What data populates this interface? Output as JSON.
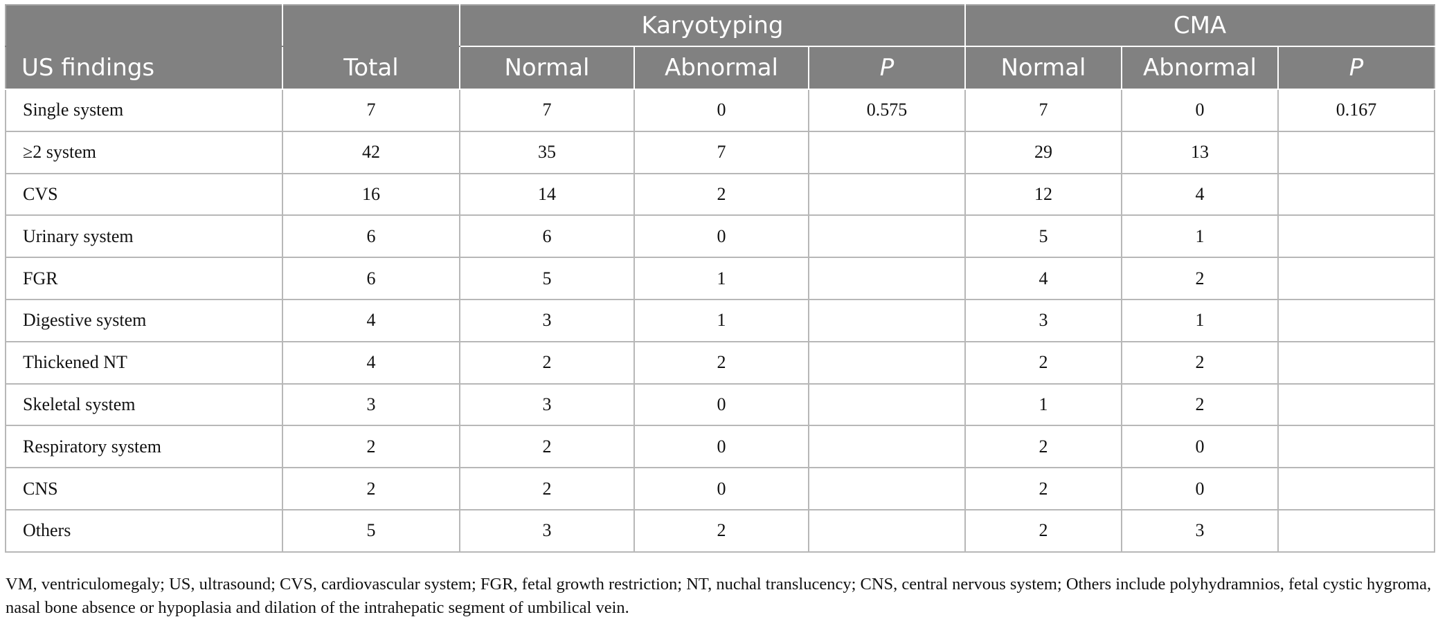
{
  "table": {
    "header_groups": {
      "karyotyping": "Karyotyping",
      "cma": "CMA"
    },
    "columns": {
      "us_findings": "US findings",
      "total": "Total",
      "karyo_normal": "Normal",
      "karyo_abnormal": "Abnormal",
      "karyo_p": "P",
      "cma_normal": "Normal",
      "cma_abnormal": "Abnormal",
      "cma_p": "P"
    },
    "rows": [
      [
        "Single system",
        "7",
        "7",
        "0",
        "0.575",
        "7",
        "0",
        "0.167"
      ],
      [
        "≥2 system",
        "42",
        "35",
        "7",
        "",
        "29",
        "13",
        ""
      ],
      [
        "CVS",
        "16",
        "14",
        "2",
        "",
        "12",
        "4",
        ""
      ],
      [
        "Urinary system",
        "6",
        "6",
        "0",
        "",
        "5",
        "1",
        ""
      ],
      [
        "FGR",
        "6",
        "5",
        "1",
        "",
        "4",
        "2",
        ""
      ],
      [
        "Digestive system",
        "4",
        "3",
        "1",
        "",
        "3",
        "1",
        ""
      ],
      [
        "Thickened NT",
        "4",
        "2",
        "2",
        "",
        "2",
        "2",
        ""
      ],
      [
        "Skeletal system",
        "3",
        "3",
        "0",
        "",
        "1",
        "2",
        ""
      ],
      [
        "Respiratory system",
        "2",
        "2",
        "0",
        "",
        "2",
        "0",
        ""
      ],
      [
        "CNS",
        "2",
        "2",
        "0",
        "",
        "2",
        "0",
        ""
      ],
      [
        "Others",
        "5",
        "3",
        "2",
        "",
        "2",
        "3",
        ""
      ]
    ]
  },
  "footnote": "VM, ventriculomegaly; US, ultrasound; CVS, cardiovascular system; FGR, fetal growth restriction; NT, nuchal translucency; CNS, central nervous system; Others include polyhydramnios, fetal cystic hygroma, nasal bone absence or hypoplasia and dilation of the intrahepatic segment of umbilical vein."
}
